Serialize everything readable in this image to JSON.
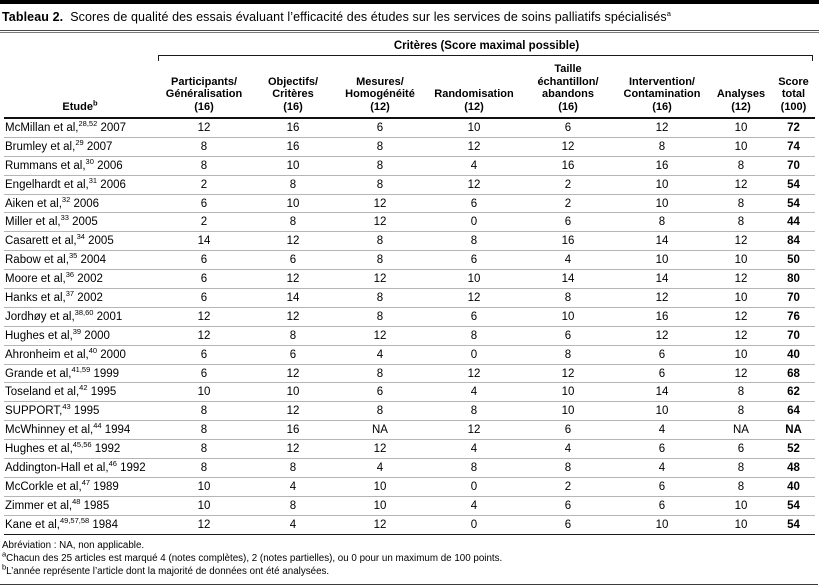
{
  "title": {
    "label": "Tableau 2.",
    "text": "Scores de qualité des essais évaluant l’efficacité des études sur les services de soins palliatifs spécialisés",
    "footnote_mark": "a"
  },
  "spanner_header": "Critères (Score maximal possible)",
  "columns": {
    "study": {
      "label": "Etude",
      "footnote_mark": "b"
    },
    "criteria": [
      "Participants/\nGénéralisation\n(16)",
      "Objectifs/\nCritères\n(16)",
      "Mesures/\nHomogénéité\n(12)",
      "Randomisation\n(12)",
      "Taille\néchantillon/\nabandons\n(16)",
      "Intervention/\nContamination\n(16)",
      "Analyses\n(12)",
      "Score\ntotal\n(100)"
    ]
  },
  "rows": [
    {
      "study": "McMillan et al,",
      "refs": "28,52",
      "year": "2007",
      "scores": [
        "12",
        "16",
        "6",
        "10",
        "6",
        "12",
        "10"
      ],
      "total": "72"
    },
    {
      "study": "Brumley et al,",
      "refs": "29",
      "year": "2007",
      "scores": [
        "8",
        "16",
        "8",
        "12",
        "12",
        "8",
        "10"
      ],
      "total": "74"
    },
    {
      "study": "Rummans et al,",
      "refs": "30",
      "year": "2006",
      "scores": [
        "8",
        "10",
        "8",
        "4",
        "16",
        "16",
        "8"
      ],
      "total": "70"
    },
    {
      "study": "Engelhardt et al,",
      "refs": "31",
      "year": "2006",
      "scores": [
        "2",
        "8",
        "8",
        "12",
        "2",
        "10",
        "12"
      ],
      "total": "54"
    },
    {
      "study": "Aiken et al,",
      "refs": "32",
      "year": "2006",
      "scores": [
        "6",
        "10",
        "12",
        "6",
        "2",
        "10",
        "8"
      ],
      "total": "54"
    },
    {
      "study": "Miller et al,",
      "refs": "33",
      "year": "2005",
      "scores": [
        "2",
        "8",
        "12",
        "0",
        "6",
        "8",
        "8"
      ],
      "total": "44"
    },
    {
      "study": "Casarett et al,",
      "refs": "34",
      "year": "2005",
      "scores": [
        "14",
        "12",
        "8",
        "8",
        "16",
        "14",
        "12"
      ],
      "total": "84"
    },
    {
      "study": "Rabow et al,",
      "refs": "35",
      "year": "2004",
      "scores": [
        "6",
        "6",
        "8",
        "6",
        "4",
        "10",
        "10"
      ],
      "total": "50"
    },
    {
      "study": "Moore et al,",
      "refs": "36",
      "year": "2002",
      "scores": [
        "6",
        "12",
        "12",
        "10",
        "14",
        "14",
        "12"
      ],
      "total": "80"
    },
    {
      "study": "Hanks et al,",
      "refs": "37",
      "year": "2002",
      "scores": [
        "6",
        "14",
        "8",
        "12",
        "8",
        "12",
        "10"
      ],
      "total": "70"
    },
    {
      "study": "Jordhøy et al,",
      "refs": "38,60",
      "year": "2001",
      "scores": [
        "12",
        "12",
        "8",
        "6",
        "10",
        "16",
        "12"
      ],
      "total": "76"
    },
    {
      "study": "Hughes et al,",
      "refs": "39",
      "year": "2000",
      "scores": [
        "12",
        "8",
        "12",
        "8",
        "6",
        "12",
        "12"
      ],
      "total": "70"
    },
    {
      "study": "Ahronheim et al,",
      "refs": "40",
      "year": "2000",
      "scores": [
        "6",
        "6",
        "4",
        "0",
        "8",
        "6",
        "10"
      ],
      "total": "40"
    },
    {
      "study": "Grande et al,",
      "refs": "41,59",
      "year": "1999",
      "scores": [
        "6",
        "12",
        "8",
        "12",
        "12",
        "6",
        "12"
      ],
      "total": "68"
    },
    {
      "study": "Toseland et al,",
      "refs": "42",
      "year": "1995",
      "scores": [
        "10",
        "10",
        "6",
        "4",
        "10",
        "14",
        "8"
      ],
      "total": "62"
    },
    {
      "study": "SUPPORT,",
      "refs": "43",
      "year": "1995",
      "scores": [
        "8",
        "12",
        "8",
        "8",
        "10",
        "10",
        "8"
      ],
      "total": "64"
    },
    {
      "study": "McWhinney et al,",
      "refs": "44",
      "year": "1994",
      "scores": [
        "8",
        "16",
        "NA",
        "12",
        "6",
        "4",
        "NA"
      ],
      "total": "NA"
    },
    {
      "study": "Hughes et al,",
      "refs": "45,56",
      "year": "1992",
      "scores": [
        "8",
        "12",
        "12",
        "4",
        "4",
        "6",
        "6"
      ],
      "total": "52"
    },
    {
      "study": "Addington-Hall et al,",
      "refs": "46",
      "year": "1992",
      "scores": [
        "8",
        "8",
        "4",
        "8",
        "8",
        "4",
        "8"
      ],
      "total": "48"
    },
    {
      "study": "McCorkle et al,",
      "refs": "47",
      "year": "1989",
      "scores": [
        "10",
        "4",
        "10",
        "0",
        "2",
        "6",
        "8"
      ],
      "total": "40"
    },
    {
      "study": "Zimmer et al,",
      "refs": "48",
      "year": "1985",
      "scores": [
        "10",
        "8",
        "10",
        "4",
        "6",
        "6",
        "10"
      ],
      "total": "54"
    },
    {
      "study": "Kane et al,",
      "refs": "49,57,58",
      "year": "1984",
      "scores": [
        "12",
        "4",
        "12",
        "0",
        "6",
        "10",
        "10"
      ],
      "total": "54"
    }
  ],
  "footnotes": [
    {
      "mark": "",
      "text": "Abréviation : NA, non applicable."
    },
    {
      "mark": "a",
      "text": "Chacun des 25 articles est marqué 4 (notes complètes), 2 (notes partielles), ou 0 pour un maximum de 100 points."
    },
    {
      "mark": "b",
      "text": "L’année représente l’article dont la majorité de données ont été analysées."
    }
  ]
}
